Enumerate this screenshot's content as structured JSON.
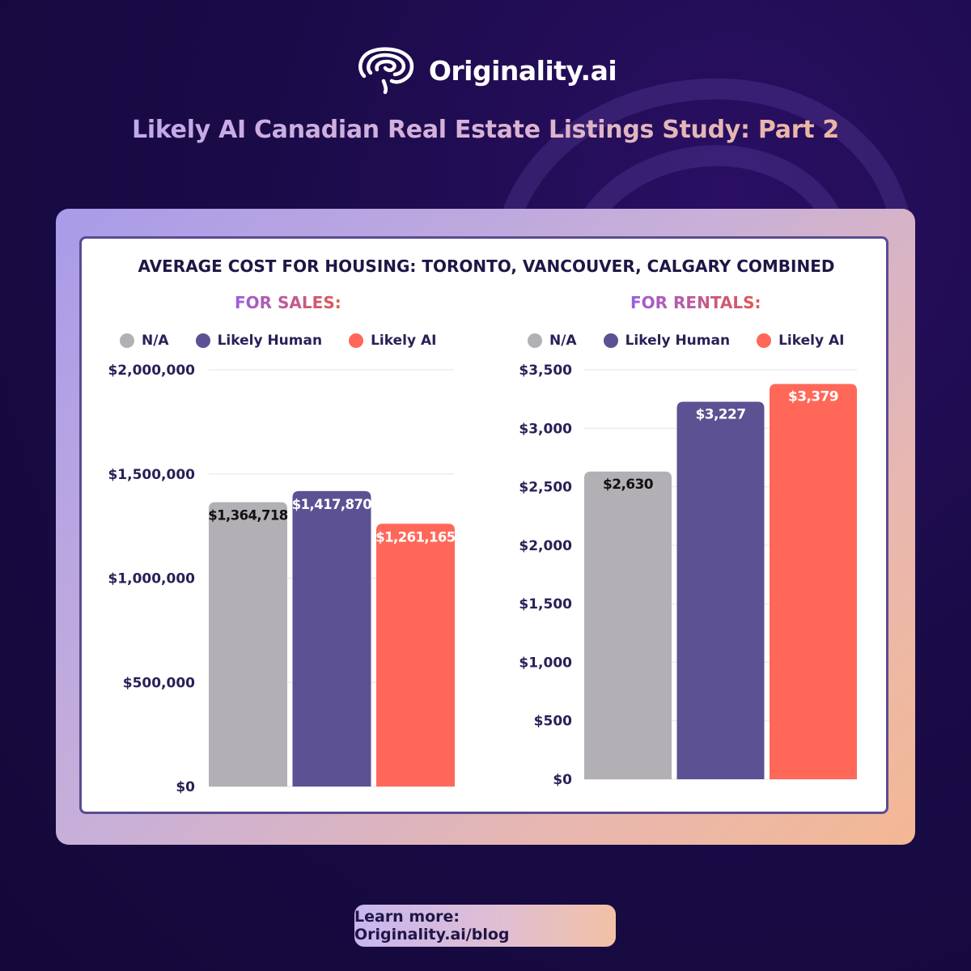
{
  "brand": {
    "name": "Originality.ai"
  },
  "page": {
    "title": "Likely AI Canadian Real Estate Listings Study: Part 2"
  },
  "chart_title": "AVERAGE COST FOR HOUSING: TORONTO, VANCOUVER, CALGARY COMBINED",
  "legend": [
    {
      "label": "N/A",
      "color": "#b3b0b5"
    },
    {
      "label": "Likely Human",
      "color": "#5c5193"
    },
    {
      "label": "Likely AI",
      "color": "#ff6859"
    }
  ],
  "chart_data": [
    {
      "type": "bar",
      "title": "FOR SALES:",
      "categories": [
        "N/A",
        "Likely Human",
        "Likely AI"
      ],
      "values": [
        1364718,
        1417870,
        1261165
      ],
      "data_labels": [
        "$1,364,718",
        "$1,417,870",
        "$1,261,165"
      ],
      "ylim": [
        0,
        2000000
      ],
      "yticks": [
        0,
        500000,
        1000000,
        1500000,
        2000000
      ],
      "ytick_labels": [
        "$0",
        "$500,000",
        "$1,000,000",
        "$1,500,000",
        "$2,000,000"
      ],
      "colors": [
        "#b3b0b5",
        "#5c5193",
        "#ff6859"
      ],
      "label_colors": [
        "#111111",
        "#ffffff",
        "#ffffff"
      ],
      "grid": true,
      "legend": "top"
    },
    {
      "type": "bar",
      "title": "FOR RENTALS:",
      "categories": [
        "N/A",
        "Likely Human",
        "Likely AI"
      ],
      "values": [
        2630,
        3227,
        3379
      ],
      "data_labels": [
        "$2,630",
        "$3,227",
        "$3,379"
      ],
      "ylim": [
        0,
        3500
      ],
      "yticks": [
        0,
        500,
        1000,
        1500,
        2000,
        2500,
        3000,
        3500
      ],
      "ytick_labels": [
        "$0",
        "$500",
        "$1,000",
        "$1,500",
        "$2,000",
        "$2,500",
        "$3,000",
        "$3,500"
      ],
      "colors": [
        "#b3b0b5",
        "#5c5193",
        "#ff6859"
      ],
      "label_colors": [
        "#111111",
        "#ffffff",
        "#ffffff"
      ],
      "grid": true,
      "legend": "top"
    }
  ],
  "footer": {
    "text": "Learn more: Originality.ai/blog"
  }
}
